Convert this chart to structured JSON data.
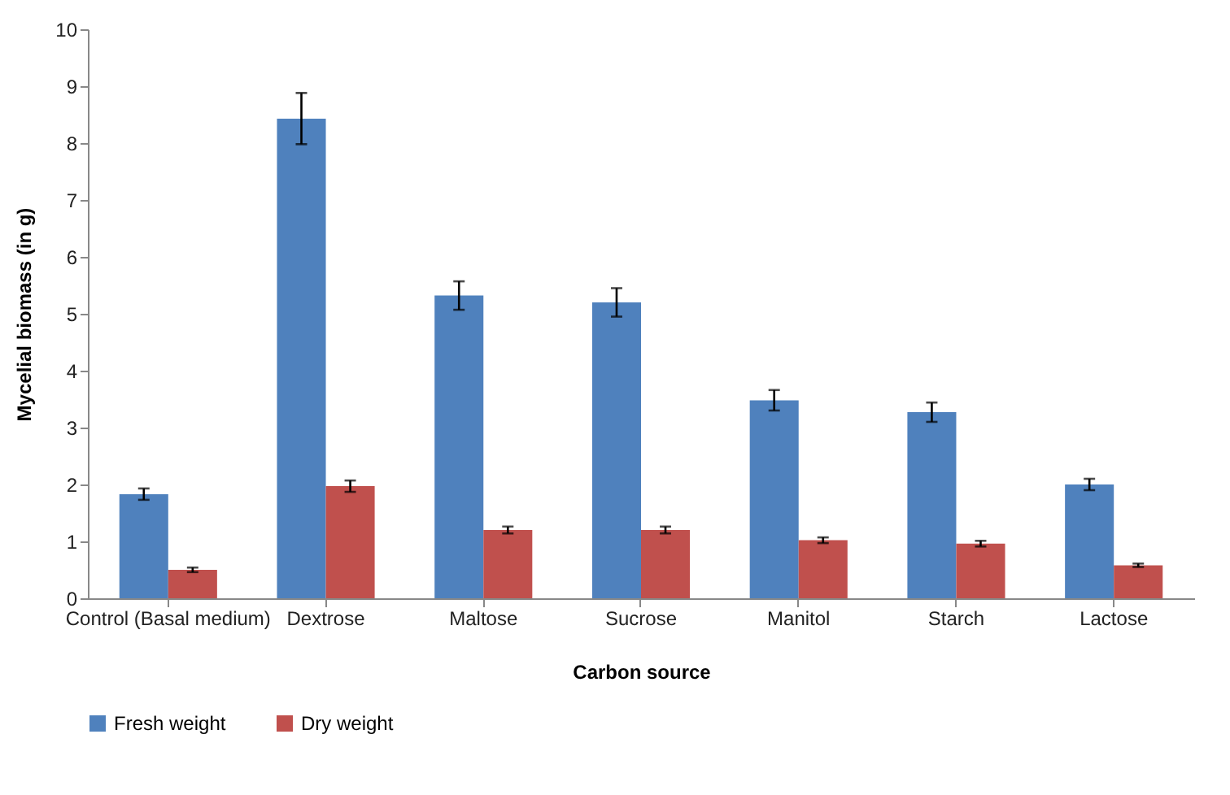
{
  "chart_data": {
    "type": "bar",
    "xlabel": "Carbon source",
    "ylabel": "Mycelial biomass (in g)",
    "categories": [
      "Control (Basal medium)",
      "Dextrose",
      "Maltose",
      "Sucrose",
      "Manitol",
      "Starch",
      "Lactose"
    ],
    "series": [
      {
        "name": "Fresh weight",
        "color": "#4f81bd",
        "values": [
          1.83,
          8.43,
          5.32,
          5.2,
          3.48,
          3.27,
          2.0
        ],
        "errors": [
          0.1,
          0.45,
          0.25,
          0.25,
          0.18,
          0.17,
          0.1
        ]
      },
      {
        "name": "Dry weight",
        "color": "#c0504d",
        "values": [
          0.5,
          1.97,
          1.2,
          1.2,
          1.02,
          0.96,
          0.58
        ],
        "errors": [
          0.04,
          0.1,
          0.06,
          0.06,
          0.05,
          0.05,
          0.03
        ]
      }
    ],
    "ylim": [
      0,
      10
    ],
    "yticks": [
      0,
      1,
      2,
      3,
      4,
      5,
      6,
      7,
      8,
      9,
      10
    ],
    "legend": "bottom"
  }
}
